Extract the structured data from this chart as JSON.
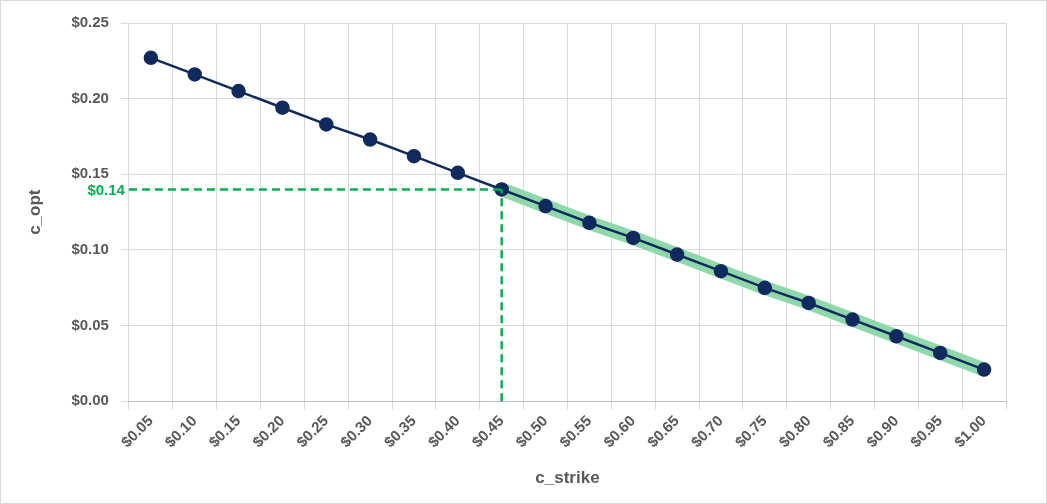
{
  "chart_data": {
    "type": "line",
    "xlabel": "c_strike",
    "ylabel": "c_opt",
    "categories": [
      "$0.05",
      "$0.10",
      "$0.15",
      "$0.20",
      "$0.25",
      "$0.30",
      "$0.35",
      "$0.40",
      "$0.45",
      "$0.50",
      "$0.55",
      "$0.60",
      "$0.65",
      "$0.70",
      "$0.75",
      "$0.80",
      "$0.85",
      "$0.90",
      "$0.95",
      "$1.00"
    ],
    "series": [
      {
        "color": "#102a5e",
        "values": [
          0.227,
          0.216,
          0.205,
          0.194,
          0.183,
          0.173,
          0.162,
          0.151,
          0.14,
          0.129,
          0.118,
          0.108,
          0.097,
          0.086,
          0.075,
          0.065,
          0.054,
          0.043,
          0.032,
          0.021
        ]
      },
      {
        "color": "#8ed8aa",
        "marker": "none",
        "values": [
          null,
          null,
          null,
          null,
          null,
          null,
          null,
          null,
          0.14,
          0.129,
          0.118,
          0.108,
          0.097,
          0.086,
          0.075,
          0.065,
          0.054,
          0.043,
          0.032,
          0.021
        ]
      }
    ],
    "ylim": [
      0,
      0.25
    ],
    "yticks": [
      {
        "value": 0,
        "label": "$0.00"
      },
      {
        "value": 0.05,
        "label": "$0.05"
      },
      {
        "value": 0.1,
        "label": "$0.10"
      },
      {
        "value": 0.15,
        "label": "$0.15"
      },
      {
        "value": 0.2,
        "label": "$0.20"
      },
      {
        "value": 0.25,
        "label": "$0.25"
      }
    ],
    "ref_lines": [
      {
        "axis": "y",
        "value": 0.14,
        "label": "$0.14",
        "color": "#00b050",
        "line_style": "dashed"
      },
      {
        "axis": "x",
        "value": "$0.45",
        "color": "#00b050",
        "line_style": "dashed"
      }
    ],
    "grid": true,
    "legend": false,
    "marker": "circle",
    "line_style": "solid"
  }
}
